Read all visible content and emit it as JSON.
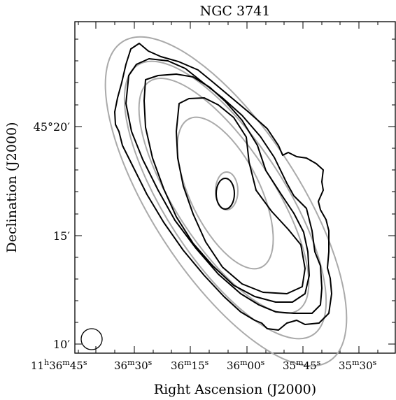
{
  "chart_data": {
    "type": "contour",
    "title": "NGC 3741",
    "xlabel": "Right Ascension (J2000)",
    "ylabel": "Declination (J2000)",
    "x_ticks": [
      {
        "h": "11",
        "m": "36",
        "s": "45",
        "lead": true
      },
      {
        "m": "36",
        "s": "30"
      },
      {
        "m": "36",
        "s": "15"
      },
      {
        "m": "36",
        "s": "00"
      },
      {
        "m": "35",
        "s": "45"
      },
      {
        "m": "35",
        "s": "30"
      }
    ],
    "y_ticks": [
      {
        "deg": "45°",
        "min": "20′"
      },
      {
        "min": "15′"
      },
      {
        "min": "10′"
      }
    ],
    "observed_contour_color": "#000000",
    "model_contour_color": "#aaaaaa",
    "observed_contour_levels": 5,
    "model_contour_levels": 5,
    "beam_marker": "circle",
    "grid": false
  }
}
